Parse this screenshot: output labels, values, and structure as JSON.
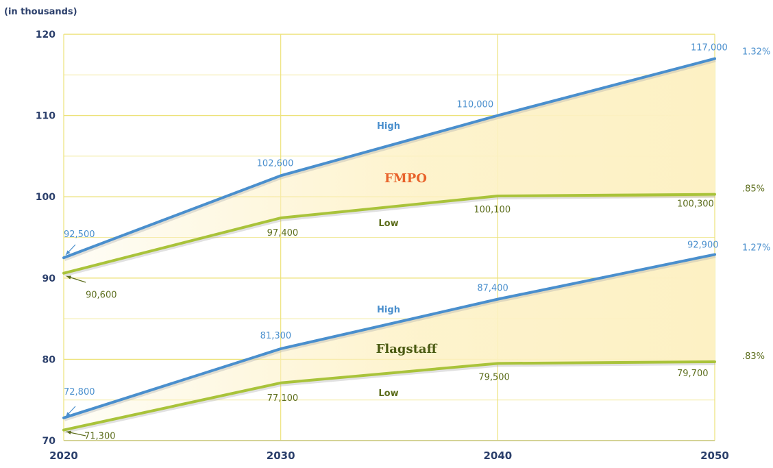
{
  "chart_data": {
    "type": "line",
    "unit_label": "(in thousands)",
    "x": [
      2020,
      2030,
      2040,
      2050
    ],
    "xlim": [
      2020,
      2050
    ],
    "ylim": [
      70,
      120
    ],
    "yticks": [
      70,
      80,
      90,
      100,
      110,
      120
    ],
    "grid": true,
    "colors": {
      "high": "#4a8fcd",
      "low": "#a9c33a",
      "band": "#fdf1c4",
      "grid": "#ede27a",
      "axis_text": "#2b3f6b",
      "fmpo": "#e8622a",
      "flagstaff": "#4a5a12"
    },
    "groups": [
      {
        "name": "FMPO",
        "series": [
          {
            "name": "High",
            "values": [
              92.5,
              102.6,
              110.0,
              117.0
            ],
            "point_labels": [
              "92,500",
              "102,600",
              "110,000",
              "117,000"
            ],
            "rate": "1.32%"
          },
          {
            "name": "Low",
            "values": [
              90.6,
              97.4,
              100.1,
              100.3
            ],
            "point_labels": [
              "90,600",
              "97,400",
              "100,100",
              "100,300"
            ],
            "rate": ".85%"
          }
        ]
      },
      {
        "name": "Flagstaff",
        "series": [
          {
            "name": "High",
            "values": [
              72.8,
              81.3,
              87.4,
              92.9
            ],
            "point_labels": [
              "72,800",
              "81,300",
              "87,400",
              "92,900"
            ],
            "rate": "1.27%"
          },
          {
            "name": "Low",
            "values": [
              71.3,
              77.1,
              79.5,
              79.7
            ],
            "point_labels": [
              "71,300",
              "77,100",
              "79,500",
              "79,700"
            ],
            "rate": ".83%"
          }
        ]
      }
    ]
  }
}
